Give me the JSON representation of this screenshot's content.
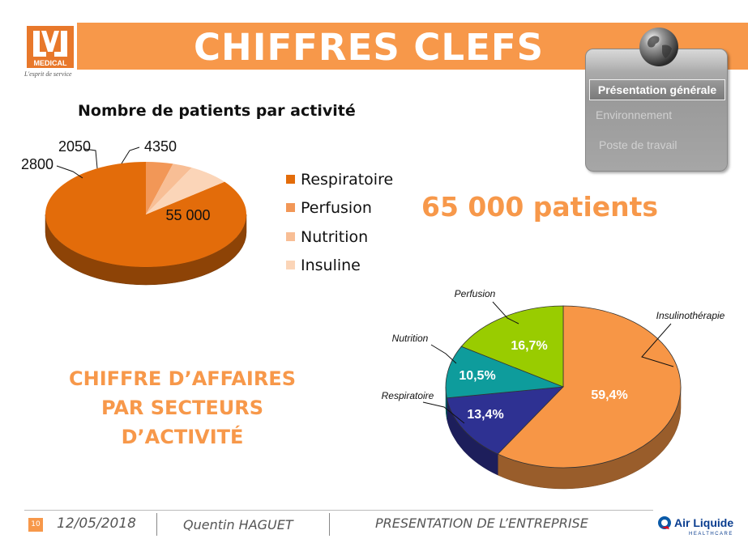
{
  "header": {
    "title": "CHIFFRES CLEFS",
    "logo_text": "MEDICAL",
    "logo_tagline": "L'esprit de service",
    "accent_color": "#f7984a"
  },
  "nav": {
    "items": [
      {
        "label": "Présentation générale",
        "active": true
      },
      {
        "label": "Environnement",
        "active": false
      },
      {
        "label": "Poste de travail",
        "active": false
      }
    ]
  },
  "patients": {
    "chart_title": "Nombre de patients par activité",
    "total": "65 000 patients"
  },
  "revenue": {
    "heading_lines": [
      "CHIFFRE D’AFFAIRES",
      "PAR SECTEURS",
      "D’ACTIVITÉ"
    ]
  },
  "chart_data": [
    {
      "type": "pie",
      "title": "Nombre de patients par activité",
      "labels": [
        "Respiratoire",
        "Perfusion",
        "Nutrition",
        "Insuline"
      ],
      "values": [
        55000,
        2800,
        2050,
        4350
      ],
      "value_labels": [
        "55 000",
        "2800",
        "2050",
        "4350"
      ],
      "colors": [
        "#e36c0a",
        "#f29757",
        "#f8be95",
        "#fbd5b8"
      ],
      "legend": "right",
      "style": "3d"
    },
    {
      "type": "pie",
      "title": "",
      "labels": [
        "Insulinothérapie",
        "Respiratoire",
        "Nutrition",
        "Perfusion"
      ],
      "values": [
        59.4,
        13.4,
        10.5,
        16.7
      ],
      "value_labels": [
        "59,4%",
        "13,4%",
        "10,5%",
        "16,7%"
      ],
      "colors": [
        "#f79646",
        "#2e3192",
        "#0e9c9c",
        "#99cc00"
      ],
      "legend": "none",
      "style": "3d"
    }
  ],
  "footer": {
    "page_number": "10",
    "date": "12/05/2018",
    "author": "Quentin HAGUET",
    "section": "PRESENTATION DE L’ENTREPRISE",
    "brand": "Air Liquide",
    "brand_sub": "HEALTHCARE"
  }
}
